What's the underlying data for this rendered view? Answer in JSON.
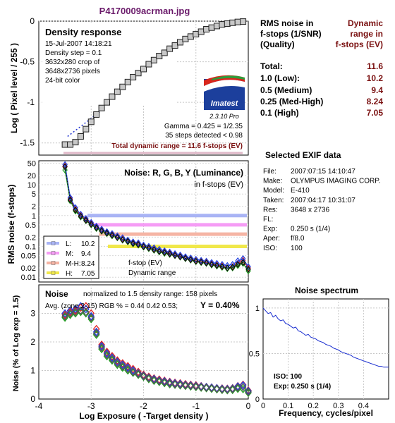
{
  "file_title": "P4170009acrman.jpg",
  "density_panel": {
    "title": "Density response",
    "info": [
      "15-Jul-2007 14:18:21",
      "Density step = 0.1",
      "3632x280 crop of",
      "3648x2736 pixels",
      "24-bit color"
    ],
    "ylabel": "Log ( Pixel level / 255 )",
    "gamma": "Gamma = 0.425 = 1/2.35",
    "steps": "35 steps detected < 0.98",
    "total_dr": "Total dynamic range = 11.6 f-stops (EV)",
    "logo_text": "Imatest",
    "version": "2.3.10  Pro"
  },
  "rms_table": {
    "col1": [
      "RMS noise in",
      "f-stops (1/SNR)",
      "(Quality)"
    ],
    "col2": [
      "Dynamic",
      "range in",
      "f-stops (EV)"
    ],
    "rows": [
      {
        "label": "Total:",
        "value": "11.6"
      },
      {
        "label": "1.0   (Low):",
        "value": "10.2"
      },
      {
        "label": "0.5   (Medium)",
        "value": "9.4"
      },
      {
        "label": "0.25 (Med-High)",
        "value": "8.24"
      },
      {
        "label": "0.1   (High)",
        "value": "7.05"
      }
    ]
  },
  "exif": {
    "title": "Selected EXIF data",
    "rows": [
      {
        "k": "File:",
        "v": "2007:07:15 14:10:47"
      },
      {
        "k": "Make:",
        "v": "OLYMPUS IMAGING CORP."
      },
      {
        "k": "Model:",
        "v": "E-410"
      },
      {
        "k": "Taken:",
        "v": "2007:04:17 10:31:07"
      },
      {
        "k": "Res:",
        "v": "3648 x 2736"
      },
      {
        "k": "FL:",
        "v": ""
      },
      {
        "k": "Exp:",
        "v": "0.250 s  (1/4)"
      },
      {
        "k": "Aper:",
        "v": "f/8.0"
      },
      {
        "k": "ISO:",
        "v": "100"
      }
    ]
  },
  "noise_ev_panel": {
    "title": "Noise: R, G, B, Y (Luminance)",
    "subtitle": "in f-stops (EV)",
    "ylabel": "RMS noise (f-stops)",
    "legend": [
      {
        "label": "L:",
        "value": "10.2",
        "color": "#a9b4f5"
      },
      {
        "label": "M:",
        "value": "9.4",
        "color": "#f59cf5"
      },
      {
        "label": "M-H:",
        "value": "8.24",
        "color": "#f5b4a4"
      },
      {
        "label": "H:",
        "value": "7.05",
        "color": "#f0e84a"
      }
    ],
    "note1": "f-stop (EV)",
    "note2": "Dynamic range"
  },
  "noise_pct_panel": {
    "title": "Noise",
    "normalized": "normalized to 1.5 density range: 158 pixels",
    "avg": "Avg. (zone 2-15) RGB % = 0.44  0.42  0.53;",
    "y_value": "Y = 0.40%",
    "ylabel": "Noise (% of Log exp = 1.5)",
    "xlabel": "Log Exposure ( -Target density )"
  },
  "spectrum_panel": {
    "title": "Noise spectrum",
    "xlabel": "Frequency, cycles/pixel",
    "iso": "ISO:   100",
    "exp": "Exp:   0.250 s   (1/4)"
  },
  "chart_data": [
    {
      "type": "line",
      "name": "density_response",
      "xlim": [
        -4,
        0
      ],
      "ylim": [
        -1.65,
        0
      ],
      "yticks": [
        0,
        -0.5,
        -1,
        -1.5
      ],
      "yticklabels": [
        "0",
        "-0.5",
        "-1",
        "-1.5"
      ],
      "grid": true,
      "x": [
        -3.5,
        -3.4,
        -3.3,
        -3.2,
        -3.1,
        -3.0,
        -2.9,
        -2.8,
        -2.7,
        -2.6,
        -2.5,
        -2.4,
        -2.3,
        -2.2,
        -2.1,
        -2.0,
        -1.9,
        -1.8,
        -1.7,
        -1.6,
        -1.5,
        -1.4,
        -1.3,
        -1.2,
        -1.1,
        -1.0,
        -0.9,
        -0.8,
        -0.7,
        -0.6,
        -0.5,
        -0.4,
        -0.3,
        -0.2,
        -0.1
      ],
      "y": [
        -1.52,
        -1.52,
        -1.49,
        -1.42,
        -1.33,
        -1.24,
        -1.15,
        -1.07,
        -1.0,
        -0.93,
        -0.87,
        -0.81,
        -0.75,
        -0.69,
        -0.64,
        -0.59,
        -0.53,
        -0.48,
        -0.43,
        -0.39,
        -0.34,
        -0.3,
        -0.26,
        -0.22,
        -0.19,
        -0.16,
        -0.13,
        -0.1,
        -0.08,
        -0.06,
        -0.04,
        -0.03,
        -0.02,
        -0.01,
        -0.005
      ],
      "fit_x": [
        -3.45,
        -2.8
      ],
      "fit_y": [
        -1.42,
        -1.1
      ]
    },
    {
      "type": "line",
      "name": "noise_fstops",
      "xlim": [
        -4,
        0
      ],
      "ylog": true,
      "ylim": [
        0.007,
        60
      ],
      "yticks": [
        50,
        20,
        10,
        5,
        2,
        1,
        0.5,
        0.2,
        0.1,
        0.05,
        0.02,
        0.01
      ],
      "yticklabels": [
        "50",
        "20",
        "10",
        "5",
        "2",
        "1",
        "0.5",
        "0.2",
        "0.1",
        "0.05",
        "0.02",
        "0.01"
      ],
      "thresholds": [
        {
          "level": 1.0,
          "xstart": -3.07,
          "color": "#a9b4f5"
        },
        {
          "level": 0.5,
          "xstart": -2.98,
          "color": "#f59cf5"
        },
        {
          "level": 0.25,
          "xstart": -2.85,
          "color": "#f5b4a4"
        },
        {
          "level": 0.1,
          "xstart": -2.68,
          "color": "#f0e84a"
        }
      ],
      "x": [
        -3.5,
        -3.4,
        -3.3,
        -3.2,
        -3.1,
        -3.0,
        -2.9,
        -2.8,
        -2.7,
        -2.6,
        -2.5,
        -2.4,
        -2.3,
        -2.2,
        -2.1,
        -2.0,
        -1.9,
        -1.8,
        -1.7,
        -1.6,
        -1.5,
        -1.4,
        -1.3,
        -1.2,
        -1.1,
        -1.0,
        -0.9,
        -0.8,
        -0.7,
        -0.6,
        -0.5,
        -0.4,
        -0.3,
        -0.2,
        -0.1,
        0.0
      ],
      "series": [
        {
          "name": "R",
          "color": "#e02020",
          "values": [
            40,
            3.5,
            1.6,
            1.0,
            0.75,
            0.55,
            0.42,
            0.34,
            0.28,
            0.24,
            0.2,
            0.17,
            0.15,
            0.13,
            0.12,
            0.1,
            0.09,
            0.08,
            0.07,
            0.065,
            0.06,
            0.053,
            0.048,
            0.042,
            0.038,
            0.034,
            0.032,
            0.03,
            0.027,
            0.025,
            0.023,
            0.02,
            0.022,
            0.028,
            0.035,
            0.02
          ]
        },
        {
          "name": "G",
          "color": "#20a020",
          "values": [
            30,
            3.0,
            1.4,
            0.9,
            0.68,
            0.5,
            0.38,
            0.31,
            0.26,
            0.22,
            0.19,
            0.16,
            0.14,
            0.12,
            0.11,
            0.095,
            0.085,
            0.075,
            0.066,
            0.06,
            0.055,
            0.05,
            0.045,
            0.04,
            0.036,
            0.032,
            0.03,
            0.028,
            0.025,
            0.023,
            0.021,
            0.019,
            0.02,
            0.024,
            0.028,
            0.016
          ]
        },
        {
          "name": "B",
          "color": "#2040e0",
          "values": [
            45,
            3.8,
            1.8,
            1.1,
            0.8,
            0.6,
            0.45,
            0.36,
            0.3,
            0.26,
            0.22,
            0.19,
            0.16,
            0.14,
            0.13,
            0.11,
            0.1,
            0.09,
            0.08,
            0.072,
            0.065,
            0.058,
            0.052,
            0.046,
            0.042,
            0.038,
            0.035,
            0.033,
            0.03,
            0.028,
            0.026,
            0.024,
            0.026,
            0.034,
            0.04,
            0.022
          ]
        },
        {
          "name": "Y",
          "color": "#111111",
          "values": [
            38,
            3.2,
            1.5,
            0.95,
            0.7,
            0.52,
            0.4,
            0.32,
            0.27,
            0.23,
            0.195,
            0.165,
            0.145,
            0.125,
            0.115,
            0.098,
            0.088,
            0.078,
            0.069,
            0.063,
            0.057,
            0.051,
            0.046,
            0.041,
            0.037,
            0.033,
            0.031,
            0.029,
            0.026,
            0.024,
            0.022,
            0.02,
            0.021,
            0.026,
            0.03,
            0.018
          ]
        }
      ]
    },
    {
      "type": "scatter",
      "name": "noise_percent",
      "xlim": [
        -4,
        0
      ],
      "ylim": [
        0,
        4
      ],
      "xticks": [
        -4,
        -3,
        -2,
        -1,
        0
      ],
      "xticklabels": [
        "-4",
        "-3",
        "-2",
        "-1",
        "0"
      ],
      "yticks": [
        0,
        1,
        2,
        3
      ],
      "yticklabels": [
        "0",
        "1",
        "2",
        "3"
      ],
      "x": [
        -3.5,
        -3.4,
        -3.3,
        -3.2,
        -3.1,
        -3.0,
        -2.9,
        -2.8,
        -2.7,
        -2.6,
        -2.5,
        -2.4,
        -2.3,
        -2.2,
        -2.1,
        -2.0,
        -1.9,
        -1.8,
        -1.7,
        -1.6,
        -1.5,
        -1.4,
        -1.3,
        -1.2,
        -1.1,
        -1.0,
        -0.9,
        -0.8,
        -0.7,
        -0.6,
        -0.5,
        -0.4,
        -0.3,
        -0.2,
        -0.1,
        0.0
      ],
      "series": [
        {
          "name": "R",
          "color": "#e02020",
          "values": [
            2.95,
            3.05,
            3.1,
            3.2,
            3.25,
            3.0,
            2.45,
            1.9,
            1.65,
            1.5,
            1.35,
            1.25,
            1.15,
            1.05,
            0.95,
            0.85,
            0.78,
            0.72,
            0.68,
            0.64,
            0.6,
            0.57,
            0.55,
            0.52,
            0.5,
            0.48,
            0.45,
            0.42,
            0.4,
            0.38,
            0.37,
            0.36,
            0.38,
            0.45,
            0.5,
            0.3
          ]
        },
        {
          "name": "G",
          "color": "#20a020",
          "values": [
            2.85,
            2.95,
            3.0,
            3.05,
            3.0,
            2.8,
            2.25,
            1.75,
            1.5,
            1.35,
            1.2,
            1.1,
            1.0,
            0.92,
            0.85,
            0.78,
            0.7,
            0.64,
            0.6,
            0.56,
            0.52,
            0.5,
            0.48,
            0.46,
            0.44,
            0.42,
            0.4,
            0.38,
            0.36,
            0.34,
            0.32,
            0.31,
            0.32,
            0.36,
            0.35,
            0.22
          ]
        },
        {
          "name": "B",
          "color": "#2040e0",
          "values": [
            3.0,
            3.1,
            3.15,
            3.25,
            3.15,
            2.9,
            2.35,
            1.85,
            1.6,
            1.45,
            1.3,
            1.2,
            1.1,
            1.0,
            0.9,
            0.82,
            0.75,
            0.7,
            0.65,
            0.62,
            0.58,
            0.55,
            0.53,
            0.5,
            0.48,
            0.46,
            0.44,
            0.42,
            0.4,
            0.38,
            0.36,
            0.35,
            0.37,
            0.44,
            0.48,
            0.28
          ]
        },
        {
          "name": "Y",
          "color": "#555555",
          "values": [
            2.9,
            3.0,
            3.05,
            3.1,
            3.05,
            2.85,
            2.3,
            1.8,
            1.55,
            1.4,
            1.25,
            1.15,
            1.05,
            0.95,
            0.88,
            0.8,
            0.73,
            0.67,
            0.63,
            0.59,
            0.55,
            0.52,
            0.5,
            0.48,
            0.46,
            0.44,
            0.42,
            0.4,
            0.38,
            0.36,
            0.34,
            0.33,
            0.35,
            0.4,
            0.42,
            0.25
          ]
        }
      ]
    },
    {
      "type": "line",
      "name": "noise_spectrum",
      "xlim": [
        0,
        0.5
      ],
      "ylim": [
        0,
        1.1
      ],
      "xticks": [
        0,
        0.1,
        0.2,
        0.3,
        0.4
      ],
      "xticklabels": [
        "0",
        "0.1",
        "0.2",
        "0.3",
        "0.4"
      ],
      "yticks": [
        1,
        0.5,
        0
      ],
      "yticklabels": [
        "1",
        "0.5",
        "0"
      ],
      "x": [
        0.0,
        0.01,
        0.02,
        0.03,
        0.04,
        0.05,
        0.06,
        0.07,
        0.08,
        0.09,
        0.1,
        0.11,
        0.12,
        0.13,
        0.14,
        0.15,
        0.16,
        0.17,
        0.18,
        0.19,
        0.2,
        0.21,
        0.22,
        0.23,
        0.24,
        0.25,
        0.26,
        0.27,
        0.28,
        0.29,
        0.3,
        0.31,
        0.32,
        0.33,
        0.34,
        0.35,
        0.36,
        0.37,
        0.38,
        0.39,
        0.4,
        0.41,
        0.42,
        0.43,
        0.44,
        0.45,
        0.46,
        0.47,
        0.48,
        0.49,
        0.5
      ],
      "y": [
        1.0,
        0.97,
        0.94,
        0.95,
        0.9,
        0.92,
        0.88,
        0.86,
        0.87,
        0.83,
        0.82,
        0.8,
        0.78,
        0.79,
        0.75,
        0.74,
        0.72,
        0.7,
        0.71,
        0.68,
        0.67,
        0.66,
        0.64,
        0.63,
        0.62,
        0.6,
        0.59,
        0.58,
        0.56,
        0.55,
        0.54,
        0.52,
        0.51,
        0.5,
        0.49,
        0.48,
        0.46,
        0.45,
        0.44,
        0.43,
        0.42,
        0.41,
        0.4,
        0.39,
        0.38,
        0.37,
        0.36,
        0.36,
        0.35,
        0.35,
        0.35
      ]
    }
  ]
}
